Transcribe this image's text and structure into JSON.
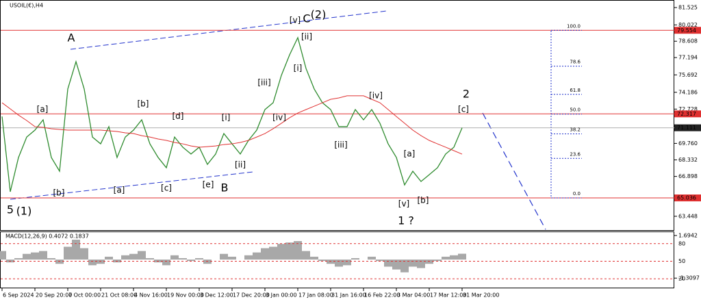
{
  "chart_data": {
    "type": "line",
    "title": "USOIL(€),H4",
    "x": [
      "6 Sep 2024",
      null,
      null,
      null,
      "20 Sep 20:00",
      null,
      null,
      null,
      "7 Oct 00:00",
      null,
      null,
      null,
      "21 Oct 08:00",
      null,
      null,
      null,
      "4 Nov 16:00",
      null,
      null,
      null,
      "19 Nov 00:00",
      null,
      null,
      null,
      "3 Dec 12:00",
      null,
      null,
      null,
      "17 Dec 20:00",
      null,
      null,
      null,
      "3 Jan 00:00",
      null,
      null,
      null,
      "17 Jan 08:00",
      null,
      null,
      null,
      "31 Jan 16:00",
      null,
      null,
      null,
      "16 Feb 22:00",
      null,
      null,
      null,
      "3 Mar 04:00",
      null,
      null,
      null,
      "17 Mar 12:00",
      null,
      null,
      null,
      "31 Mar 20:00"
    ],
    "ylim": [
      62.19,
      82.18
    ],
    "yticks": [
      81.525,
      80.022,
      78.608,
      77.194,
      75.692,
      74.186,
      72.728,
      {
        "value": 69.76,
        "label": "69.760"
      },
      68.332,
      66.898,
      63.448
    ],
    "series": [
      {
        "color": "#2e8b2e",
        "values": [
          72.09,
          65.57,
          68.54,
          70.31,
          70.91,
          71.8,
          68.54,
          67.35,
          74.47,
          76.84,
          74.47,
          70.31,
          69.72,
          71.21,
          68.54,
          70.31,
          70.91,
          71.8,
          69.72,
          68.54,
          67.65,
          70.31,
          69.43,
          68.84,
          69.43,
          67.94,
          68.84,
          70.61,
          69.72,
          68.84,
          70.02,
          70.91,
          72.69,
          73.28,
          75.65,
          77.43,
          78.92,
          76.25,
          74.47,
          73.28,
          72.69,
          71.21,
          71.21,
          72.69,
          71.8,
          72.69,
          71.5,
          69.72,
          68.54,
          66.16,
          67.35,
          66.46,
          67.05,
          67.65,
          68.84,
          69.43,
          71.11
        ]
      },
      {
        "color": "#e03030",
        "values": [
          73.28,
          72.75,
          72.21,
          71.74,
          71.21,
          71.15,
          71.03,
          70.97,
          70.91,
          70.91,
          70.91,
          70.91,
          70.91,
          70.85,
          70.79,
          70.67,
          70.61,
          70.43,
          70.31,
          70.14,
          70.02,
          69.84,
          69.72,
          69.54,
          69.43,
          69.48,
          69.54,
          69.66,
          69.72,
          69.84,
          70.02,
          70.31,
          70.61,
          71.03,
          71.5,
          71.98,
          72.39,
          72.69,
          72.98,
          73.28,
          73.58,
          73.7,
          73.88,
          73.88,
          73.88,
          73.58,
          73.28,
          72.69,
          72.09,
          71.5,
          70.91,
          70.43,
          70.02,
          69.72,
          69.43,
          69.13,
          68.83
        ]
      }
    ],
    "hlines": [
      {
        "value": 79.554,
        "color": "#e03030"
      },
      {
        "value": 72.317,
        "color": "#e03030"
      },
      {
        "value": 71.111,
        "color": "#b0b0b0"
      },
      {
        "value": 65.036,
        "color": "#e03030"
      }
    ],
    "fib": {
      "high": 79.554,
      "low": 65.036,
      "color": "#2233cc",
      "levels": [
        {
          "value": 100,
          "label": "100.0"
        },
        78.6,
        61.8,
        {
          "value": 50,
          "label": "50.0"
        },
        38.2,
        23.6,
        {
          "value": 0,
          "label": "0.0"
        }
      ]
    },
    "annotations": [
      {
        "text": "5",
        "color": "#2233cc"
      },
      {
        "text": "(1)",
        "color": "#2e8b2e"
      },
      {
        "text": "A",
        "color": "#2233cc"
      },
      {
        "text": "[a]",
        "color": "#2e8b2e"
      },
      {
        "text": "[b]",
        "color": "#2e8b2e"
      },
      {
        "text": "[a]",
        "color": "#2e8b2e"
      },
      {
        "text": "[b]",
        "color": "#2e8b2e"
      },
      {
        "text": "[c]",
        "color": "#2e8b2e"
      },
      {
        "text": "[d]",
        "color": "#2e8b2e"
      },
      {
        "text": "[e]",
        "color": "#2e8b2e"
      },
      {
        "text": "B",
        "color": "#2233cc"
      },
      {
        "text": "[i]",
        "color": "#2e8b2e"
      },
      {
        "text": "[ii]",
        "color": "#2e8b2e"
      },
      {
        "text": "[iii]",
        "color": "#2e8b2e"
      },
      {
        "text": "[iv]",
        "color": "#2e8b2e"
      },
      {
        "text": "[v]",
        "color": "#2e8b2e"
      },
      {
        "text": "C",
        "color": "#2233cc"
      },
      {
        "text": "(2)",
        "color": "#2e8b2e"
      },
      {
        "text": "[ii]",
        "color": "#2e8b2e"
      },
      {
        "text": "[i]",
        "color": "#2e8b2e"
      },
      {
        "text": "[iii]",
        "color": "#2e8b2e"
      },
      {
        "text": "[iv]",
        "color": "#2e8b2e"
      },
      {
        "text": "[v]",
        "color": "#2e8b2e"
      },
      {
        "text": "[b]",
        "color": "#2e8b2e"
      },
      {
        "text": "[a]",
        "color": "#2e8b2e"
      },
      {
        "text": "1 ?",
        "color": "#2233cc"
      },
      {
        "text": "2",
        "color": "#2233cc"
      },
      {
        "text": "[c]",
        "color": "#2e8b2e"
      }
    ],
    "macd": {
      "title": "MACD(12,26,9) 0.4072 0.1837",
      "ylim": [
        -1.976,
        1.93
      ],
      "yticks": [
        1.6942,
        -1.3097
      ],
      "color": "#a8a8a8",
      "values": [
        0.6,
        -0.2,
        0.1,
        0.4,
        0.5,
        0.6,
        0.1,
        -0.3,
        0.9,
        1.4,
        0.8,
        -0.4,
        -0.3,
        0.2,
        -0.2,
        0.3,
        0.4,
        0.6,
        0.1,
        -0.2,
        -0.4,
        0.3,
        0.1,
        -0.1,
        0.1,
        -0.3,
        0.0,
        0.4,
        0.2,
        0.0,
        0.3,
        0.5,
        0.8,
        0.9,
        1.1,
        1.2,
        1.3,
        0.6,
        0.2,
        -0.1,
        -0.3,
        -0.5,
        -0.4,
        0.1,
        0.0,
        0.2,
        -0.1,
        -0.5,
        -0.7,
        -0.9,
        -0.5,
        -0.6,
        -0.3,
        -0.1,
        0.2,
        0.3,
        0.41
      ],
      "levels": [
        80,
        50,
        20
      ],
      "levels_lim": [
        5,
        99.6
      ],
      "level_color": "#e03030"
    }
  }
}
